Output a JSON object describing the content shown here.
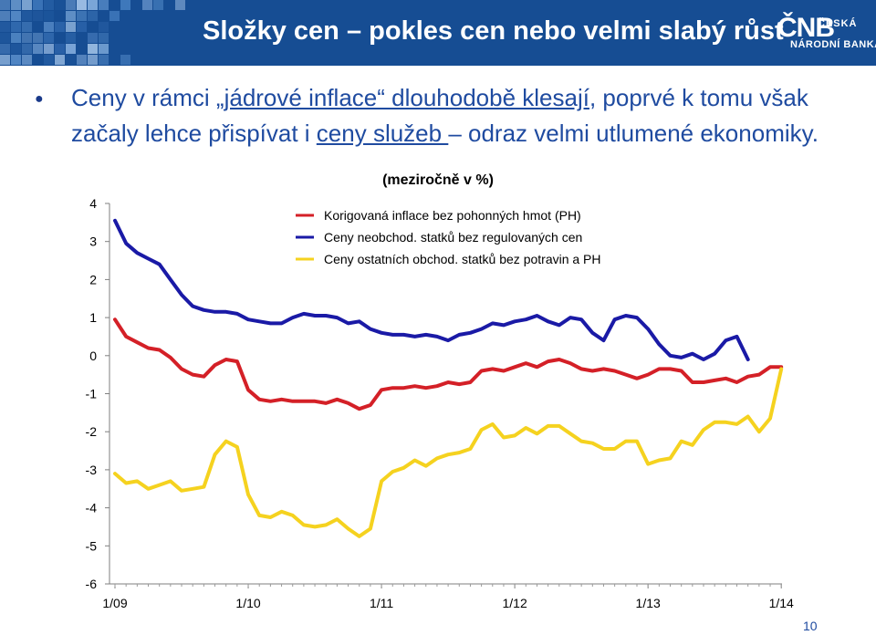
{
  "header": {
    "title": "Složky cen – pokles cen nebo velmi slabý růst",
    "logo_mark": "ČNB",
    "logo_line1": "ČESKÁ",
    "logo_line2": "NÁRODNÍ BANKA"
  },
  "bullet": {
    "part1": "Ceny v rámci ",
    "part2_underlined": "„jádrové inflace“ dlouhodobě klesají",
    "part3": ", poprvé k tomu však začaly lehce přispívat i ",
    "part4_underlined": "ceny služeb ",
    "part5": "– odraz velmi utlumené ekonomiky."
  },
  "page_number": "10",
  "colors": {
    "header_bg": "#164d93",
    "text_blue": "#1f4ba0"
  },
  "chart_data": {
    "type": "line",
    "subtitle": "(meziročně v %)",
    "x_tick_labels": [
      "1/09",
      "1/10",
      "1/11",
      "1/12",
      "1/13",
      "1/14"
    ],
    "y_tick_labels": [
      "4",
      "3",
      "2",
      "1",
      "0",
      "-1",
      "-2",
      "-3",
      "-4",
      "-5",
      "-6"
    ],
    "ylim": [
      -6,
      4
    ],
    "grid": false,
    "legend_position": "top-center",
    "x_start": "1/09",
    "x_end": "4/14",
    "series": [
      {
        "name": "Korigovaná inflace bez pohonných hmot (PH)",
        "color": "#d42027",
        "values": [
          0.95,
          0.5,
          0.35,
          0.2,
          0.15,
          -0.05,
          -0.35,
          -0.5,
          -0.55,
          -0.25,
          -0.1,
          -0.15,
          -0.9,
          -1.15,
          -1.2,
          -1.15,
          -1.2,
          -1.2,
          -1.2,
          -1.25,
          -1.15,
          -1.25,
          -1.4,
          -1.3,
          -0.9,
          -0.85,
          -0.85,
          -0.8,
          -0.85,
          -0.8,
          -0.7,
          -0.75,
          -0.7,
          -0.4,
          -0.35,
          -0.4,
          -0.3,
          -0.2,
          -0.3,
          -0.15,
          -0.1,
          -0.2,
          -0.35,
          -0.4,
          -0.35,
          -0.4,
          -0.5,
          -0.6,
          -0.5,
          -0.35,
          -0.35,
          -0.4,
          -0.7,
          -0.7,
          -0.65,
          -0.6,
          -0.7,
          -0.55,
          -0.5,
          -0.3,
          -0.3
        ]
      },
      {
        "name": "Ceny neobchod. statků bez regulovaných cen",
        "color": "#1a1aa6",
        "values": [
          3.55,
          2.95,
          2.7,
          2.55,
          2.4,
          2.0,
          1.6,
          1.3,
          1.2,
          1.15,
          1.15,
          1.1,
          0.95,
          0.9,
          0.85,
          0.85,
          1.0,
          1.1,
          1.05,
          1.05,
          1.0,
          0.85,
          0.9,
          0.7,
          0.6,
          0.55,
          0.55,
          0.5,
          0.55,
          0.5,
          0.4,
          0.55,
          0.6,
          0.7,
          0.85,
          0.8,
          0.9,
          0.95,
          1.05,
          0.9,
          0.8,
          1.0,
          0.95,
          0.6,
          0.4,
          0.95,
          1.05,
          1.0,
          0.7,
          0.3,
          0.0,
          -0.05,
          0.05,
          -0.1,
          0.05,
          0.4,
          0.5,
          -0.1
        ]
      },
      {
        "name": "Ceny ostatních obchod. statků bez potravin a PH",
        "color": "#f5d21f",
        "values": [
          -3.1,
          -3.35,
          -3.3,
          -3.5,
          -3.4,
          -3.3,
          -3.55,
          -3.5,
          -3.45,
          -2.6,
          -2.25,
          -2.4,
          -3.65,
          -4.2,
          -4.25,
          -4.1,
          -4.2,
          -4.45,
          -4.5,
          -4.45,
          -4.3,
          -4.55,
          -4.75,
          -4.55,
          -3.3,
          -3.05,
          -2.95,
          -2.75,
          -2.9,
          -2.7,
          -2.6,
          -2.55,
          -2.45,
          -1.95,
          -1.8,
          -2.15,
          -2.1,
          -1.9,
          -2.05,
          -1.85,
          -1.85,
          -2.05,
          -2.25,
          -2.3,
          -2.45,
          -2.45,
          -2.25,
          -2.25,
          -2.85,
          -2.75,
          -2.7,
          -2.25,
          -2.35,
          -1.95,
          -1.75,
          -1.75,
          -1.8,
          -1.6,
          -2.0,
          -1.65,
          -0.35
        ]
      }
    ]
  }
}
